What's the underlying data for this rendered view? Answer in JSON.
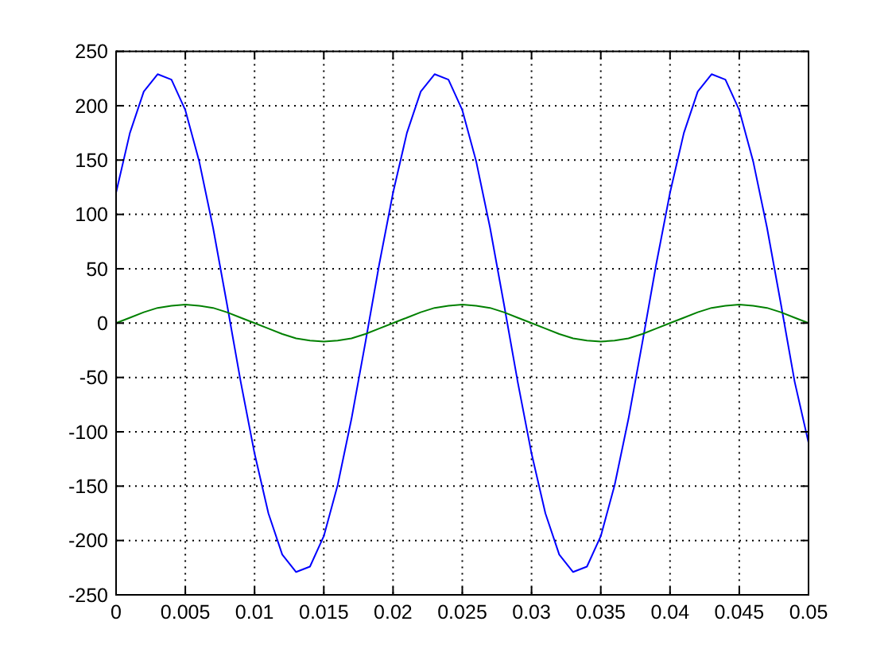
{
  "chart_data": {
    "type": "line",
    "x": [
      0,
      0.001,
      0.002,
      0.003,
      0.004,
      0.005,
      0.006,
      0.007,
      0.008,
      0.009,
      0.01,
      0.011,
      0.012,
      0.013,
      0.014,
      0.015,
      0.016,
      0.017,
      0.018,
      0.019,
      0.02,
      0.021,
      0.022,
      0.023,
      0.024,
      0.025,
      0.026,
      0.027,
      0.028,
      0.029,
      0.03,
      0.031,
      0.032,
      0.033,
      0.034,
      0.035,
      0.036,
      0.037,
      0.038,
      0.039,
      0.04,
      0.041,
      0.042,
      0.043,
      0.044,
      0.045,
      0.046,
      0.047,
      0.048,
      0.049,
      0.05
    ],
    "series": [
      {
        "color": "#0000ff",
        "values": [
          120,
          175,
          213,
          229,
          224,
          196,
          149,
          88,
          18,
          -54,
          -120,
          -175,
          -213,
          -229,
          -224,
          -196,
          -149,
          -88,
          -18,
          54,
          120,
          175,
          213,
          229,
          224,
          196,
          149,
          88,
          18,
          -54,
          -120,
          -175,
          -213,
          -229,
          -224,
          -196,
          -149,
          -88,
          -18,
          54,
          120,
          175,
          213,
          229,
          224,
          196,
          149,
          88,
          18,
          -54,
          -110
        ]
      },
      {
        "color": "#008000",
        "values": [
          0,
          5,
          10,
          14,
          16,
          17,
          16,
          14,
          10,
          5,
          0,
          -5,
          -10,
          -14,
          -16,
          -17,
          -16,
          -14,
          -10,
          -5,
          0,
          5,
          10,
          14,
          16,
          17,
          16,
          14,
          10,
          5,
          0,
          -5,
          -10,
          -14,
          -16,
          -17,
          -16,
          -14,
          -10,
          -5,
          0,
          5,
          10,
          14,
          16,
          17,
          16,
          14,
          10,
          5,
          0
        ]
      }
    ],
    "xlim": [
      0,
      0.05
    ],
    "ylim": [
      -250,
      250
    ],
    "xticks": [
      0,
      0.005,
      0.01,
      0.015,
      0.02,
      0.025,
      0.03,
      0.035,
      0.04,
      0.045,
      0.05
    ],
    "yticks": [
      -250,
      -200,
      -150,
      -100,
      -50,
      0,
      50,
      100,
      150,
      200,
      250
    ],
    "grid": true
  }
}
